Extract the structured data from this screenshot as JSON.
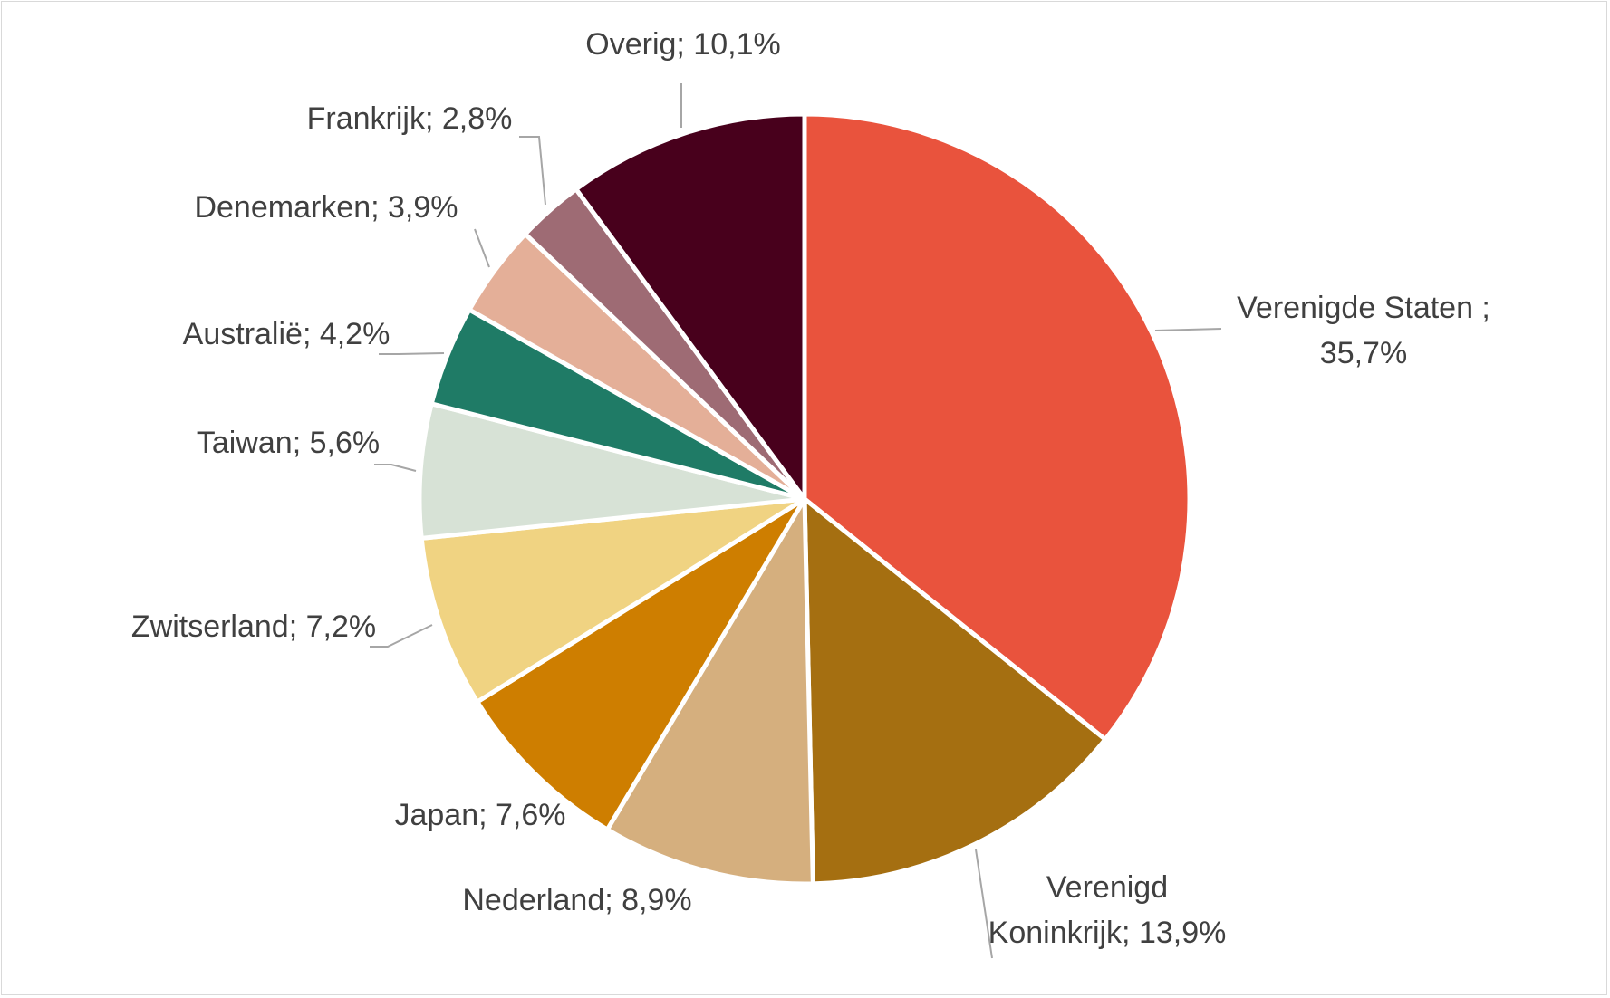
{
  "chart_data": {
    "type": "pie",
    "title": "",
    "unit": "%",
    "slices": [
      {
        "name": "Verenigde Staten",
        "value": 35.7,
        "label_lines": [
          "Verenigde Staten ;",
          "35,7%"
        ],
        "color": "#E9533D"
      },
      {
        "name": "Verenigd Koninkrijk",
        "value": 13.9,
        "label_lines": [
          "Verenigd",
          "Koninkrijk; 13,9%"
        ],
        "color": "#A56F11"
      },
      {
        "name": "Nederland",
        "value": 8.9,
        "label_lines": [
          "Nederland; 8,9%"
        ],
        "color": "#D5AF7E"
      },
      {
        "name": "Japan",
        "value": 7.6,
        "label_lines": [
          "Japan; 7,6%"
        ],
        "color": "#CE7E00"
      },
      {
        "name": "Zwitserland",
        "value": 7.2,
        "label_lines": [
          "Zwitserland; 7,2%"
        ],
        "color": "#F0D382"
      },
      {
        "name": "Taiwan",
        "value": 5.6,
        "label_lines": [
          "Taiwan; 5,6%"
        ],
        "color": "#D7E2D6"
      },
      {
        "name": "Australië",
        "value": 4.2,
        "label_lines": [
          "Australië; 4,2%"
        ],
        "color": "#1F7B66"
      },
      {
        "name": "Denemarken",
        "value": 3.9,
        "label_lines": [
          "Denemarken; 3,9%"
        ],
        "color": "#E4AF98"
      },
      {
        "name": "Frankrijk",
        "value": 2.8,
        "label_lines": [
          "Frankrijk; 2,8%"
        ],
        "color": "#9E6B74"
      },
      {
        "name": "Overig",
        "value": 10.1,
        "label_lines": [
          "Overig; 10,1%"
        ],
        "color": "#48001C"
      }
    ]
  }
}
